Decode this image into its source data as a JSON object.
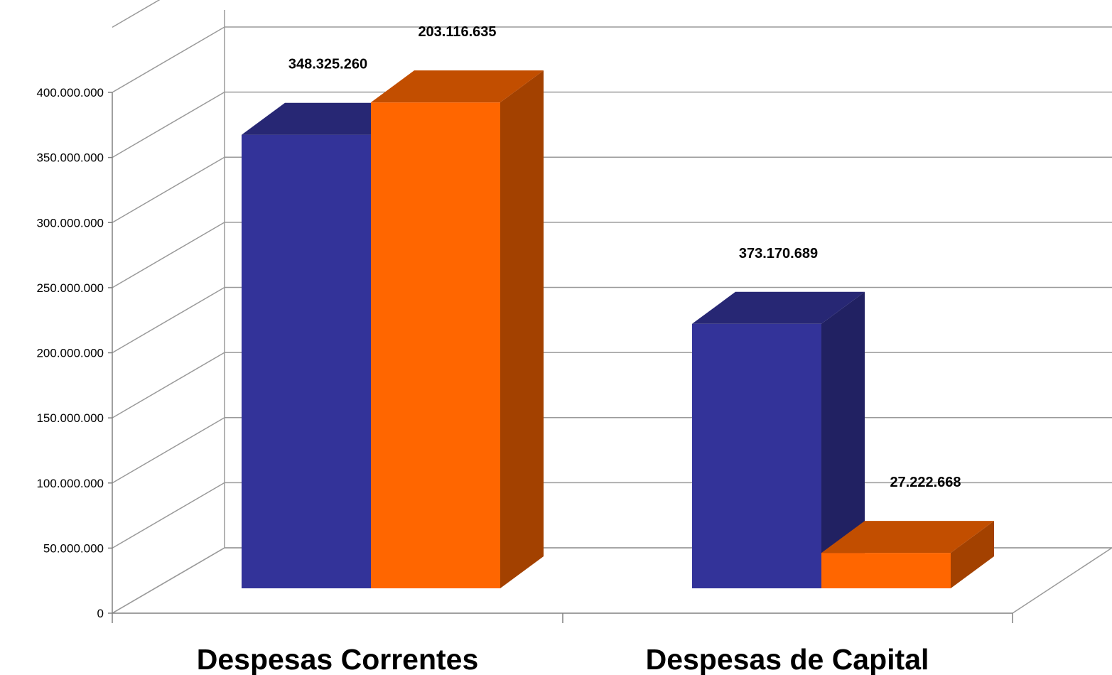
{
  "chart_data": {
    "type": "bar",
    "categories": [
      "Despesas Correntes",
      "Despesas de Capital"
    ],
    "series": [
      {
        "values": [
          348325260,
          203116635
        ],
        "color": "#333399"
      },
      {
        "values": [
          373170689,
          27222668
        ],
        "color": "#FF6600"
      }
    ],
    "data_labels": [
      "348.325.260",
      "203.116.635",
      "373.170.689",
      "27.222.668"
    ],
    "yticks": [
      "0",
      "50.000.000",
      "100.000.000",
      "150.000.000",
      "200.000.000",
      "250.000.000",
      "300.000.000",
      "350.000.000",
      "400.000.000"
    ],
    "ylim": [
      0,
      400000000
    ],
    "ytick_step": 50000000,
    "grid": true,
    "legend": "none",
    "style": "3d-clustered-column"
  }
}
